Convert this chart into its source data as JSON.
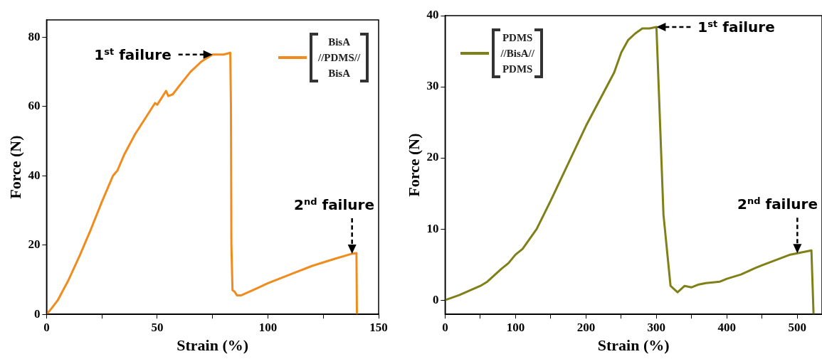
{
  "chart_data": [
    {
      "type": "line",
      "xlabel": "Strain (%)",
      "ylabel": "Force (N)",
      "xlim": [
        0,
        150
      ],
      "ylim": [
        0,
        85
      ],
      "xticks": [
        0,
        {
          "value": 25,
          "label": null
        },
        50,
        {
          "value": 75,
          "label": null
        },
        100,
        {
          "value": 125,
          "label": null
        },
        150
      ],
      "yticks": [
        0,
        20,
        40,
        60,
        80
      ],
      "grid": false,
      "legend": "top right",
      "series": [
        {
          "name": "BisA //PDMS// BisA",
          "color": "#f08c1e",
          "x": [
            0,
            2,
            5,
            10,
            15,
            20,
            25,
            30,
            32,
            35,
            40,
            45,
            49,
            50,
            52,
            54,
            55,
            57,
            60,
            65,
            70,
            75,
            77,
            80,
            83,
            83.3,
            83.5,
            84,
            85,
            86,
            88,
            95,
            100,
            110,
            120,
            130,
            138,
            140,
            140.2
          ],
          "values": [
            0,
            1.5,
            4,
            10,
            17,
            24.5,
            32.5,
            40,
            41.5,
            46,
            52,
            57,
            61,
            60.5,
            62.5,
            64.5,
            63,
            63.5,
            66,
            70,
            73,
            75,
            75,
            75,
            75.5,
            60,
            20,
            7,
            6.5,
            5.5,
            5.5,
            7.5,
            9,
            11.5,
            14,
            16,
            17.5,
            17.7,
            0
          ]
        }
      ],
      "annotations": [
        {
          "text": "1$^{st}$ failure",
          "x": 75,
          "y": 75
        },
        {
          "text": "2$^{nd}$ failure",
          "x": 138,
          "y": 17.5
        }
      ]
    },
    {
      "type": "line",
      "xlabel": "Strain (%)",
      "ylabel": "Force (N)",
      "xlim": [
        0,
        535
      ],
      "ylim": [
        -2,
        40
      ],
      "xticks": [
        0,
        {
          "value": 50,
          "label": null
        },
        100,
        {
          "value": 150,
          "label": null
        },
        200,
        {
          "value": 250,
          "label": null
        },
        300,
        {
          "value": 350,
          "label": null
        },
        400,
        {
          "value": 450,
          "label": null
        },
        500
      ],
      "yticks": [
        0,
        10,
        20,
        30,
        40
      ],
      "grid": false,
      "legend": "top left",
      "series": [
        {
          "name": "PDMS //BisA// PDMS",
          "color": "#808018",
          "x": [
            0,
            20,
            50,
            60,
            80,
            90,
            100,
            110,
            130,
            150,
            200,
            240,
            250,
            260,
            270,
            280,
            290,
            300,
            310,
            320,
            330,
            340,
            350,
            360,
            370,
            390,
            400,
            420,
            440,
            450,
            490,
            500,
            520,
            523
          ],
          "values": [
            0,
            0.7,
            2,
            2.6,
            4.4,
            5.2,
            6.4,
            7.2,
            10,
            14,
            24.5,
            32,
            34.8,
            36.6,
            37.5,
            38.2,
            38.2,
            38.4,
            12,
            2,
            1.1,
            2,
            1.8,
            2.2,
            2.4,
            2.6,
            3,
            3.6,
            4.5,
            4.9,
            6.4,
            6.6,
            7,
            -2
          ]
        }
      ],
      "annotations": [
        {
          "text": "1$^{st}$ failure",
          "x": 300,
          "y": 38.4
        },
        {
          "text": "2$^{nd}$ failure",
          "x": 500,
          "y": 6.6
        }
      ]
    }
  ]
}
